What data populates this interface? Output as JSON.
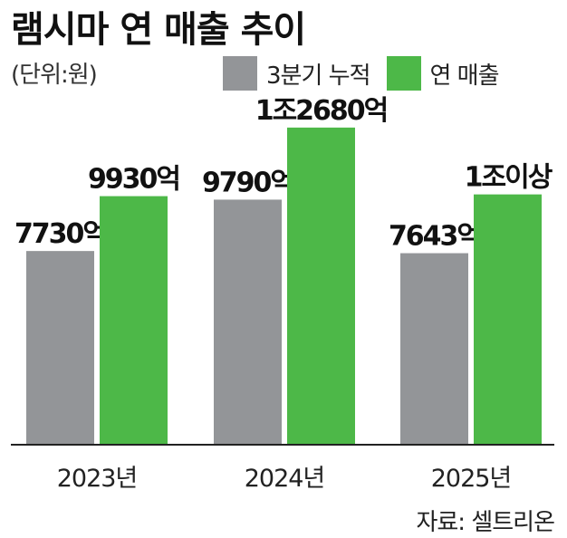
{
  "title": "램시마 연 매출 추이",
  "unit": "(단위:원)",
  "source": "자료: 셀트리온",
  "colors": {
    "cumulative": "#939598",
    "annual": "#4db848",
    "axis": "#222222"
  },
  "chart_data": {
    "type": "bar",
    "categories": [
      "2023년",
      "2024년",
      "2025년"
    ],
    "series": [
      {
        "name": "3분기 누적",
        "values": [
          7730,
          9790,
          7643
        ],
        "labels": [
          "7730억",
          "9790억",
          "7643억"
        ]
      },
      {
        "name": "연 매출",
        "values": [
          9930,
          12680,
          10000
        ],
        "labels": [
          "9930억",
          "1조2680억",
          "1조이상"
        ]
      }
    ],
    "ylim": [
      0,
      13800
    ],
    "grid": false,
    "legend_position": "top-right"
  }
}
